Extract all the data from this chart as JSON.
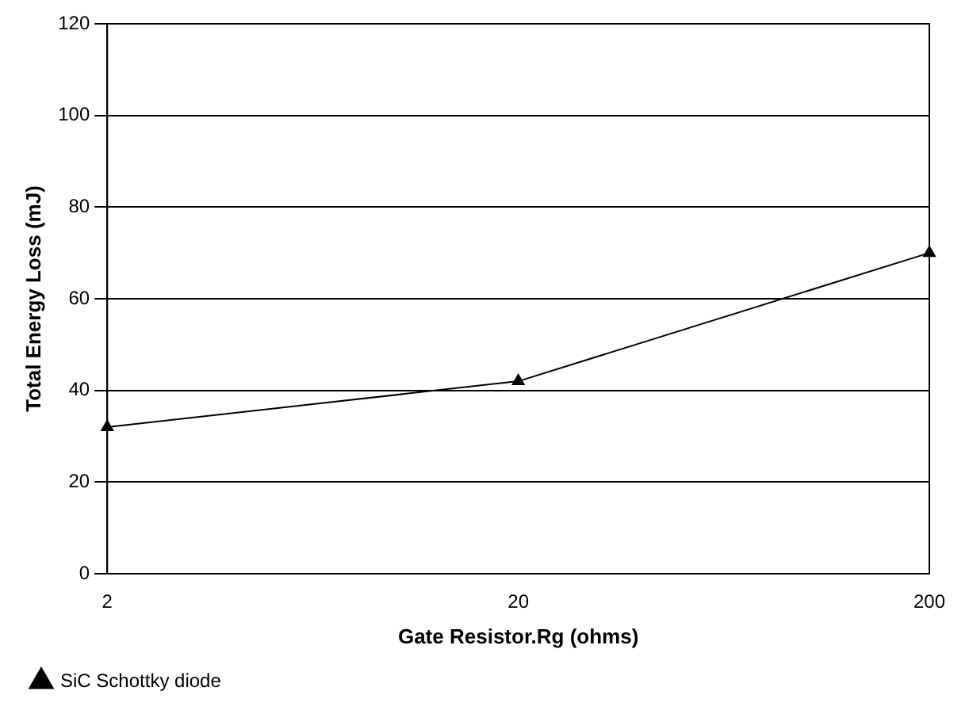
{
  "chart_data": {
    "type": "line",
    "xlabel": "Gate Resistor.Rg (ohms)",
    "ylabel": "Total Energy Loss (mJ)",
    "categories": [
      "2",
      "20",
      "200"
    ],
    "series": [
      {
        "name": "SiC Schottky diode",
        "color": "#000000",
        "values": [
          32,
          42,
          70
        ]
      }
    ],
    "ylim": [
      0,
      120
    ],
    "yticks": [
      0,
      20,
      40,
      60,
      80,
      100,
      120
    ],
    "grid": "y",
    "legend": "bottom left",
    "marker": "triangle"
  }
}
